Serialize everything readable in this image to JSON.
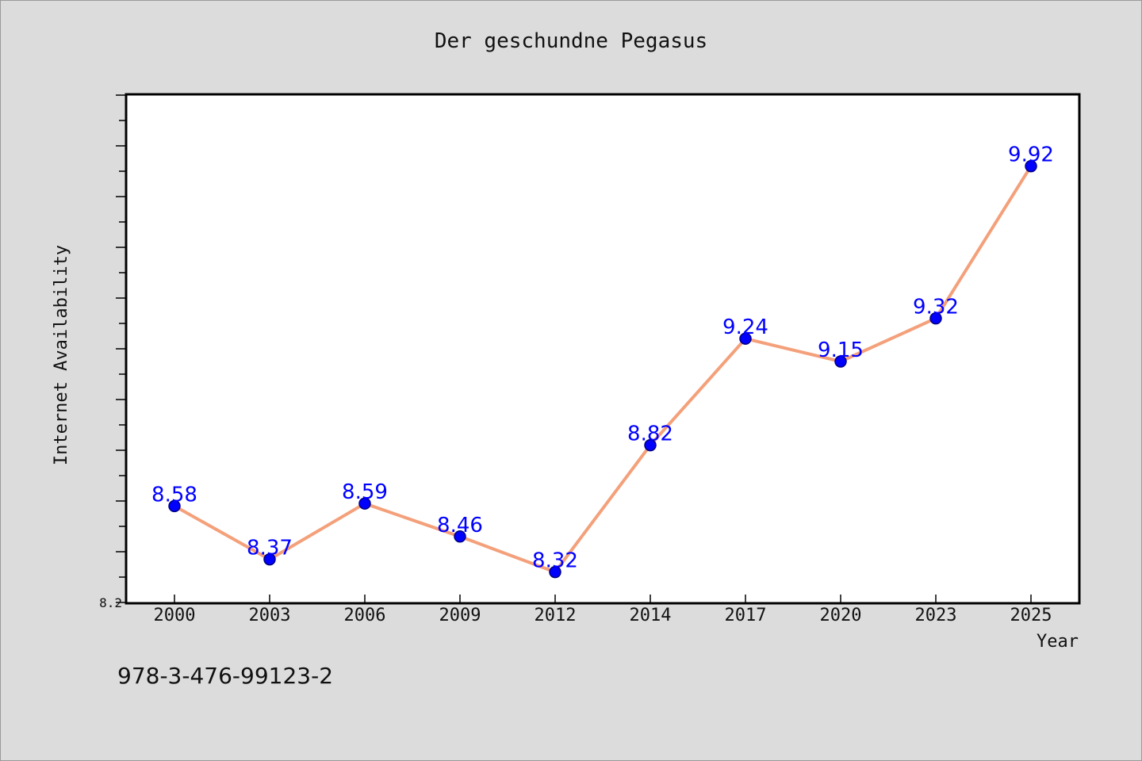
{
  "chart_data": {
    "type": "line",
    "title": "Der geschundne Pegasus",
    "xlabel": "Year",
    "ylabel": "Internet Availability",
    "categories": [
      "2000",
      "2003",
      "2006",
      "2009",
      "2012",
      "2014",
      "2017",
      "2020",
      "2023",
      "2025"
    ],
    "series": [
      {
        "values": [
          8.58,
          8.37,
          8.59,
          8.46,
          8.32,
          8.82,
          9.24,
          9.15,
          9.32,
          9.92
        ]
      }
    ],
    "data_labels": [
      "8.58",
      "8.37",
      "8.59",
      "8.46",
      "8.32",
      "8.82",
      "9.24",
      "9.15",
      "9.32",
      "9.92"
    ],
    "y_tick_labels": [
      "8.2"
    ],
    "ylim": [
      8.2,
      10.2
    ],
    "grid": false,
    "colors": {
      "line": "#f4a07a",
      "marker": "#0000ff",
      "marker_edge": "#000080",
      "label": "#0000ff",
      "plot_bg": "#ffffff",
      "page_bg": "#dcdcdc"
    }
  },
  "footnote": "978-3-476-99123-2"
}
